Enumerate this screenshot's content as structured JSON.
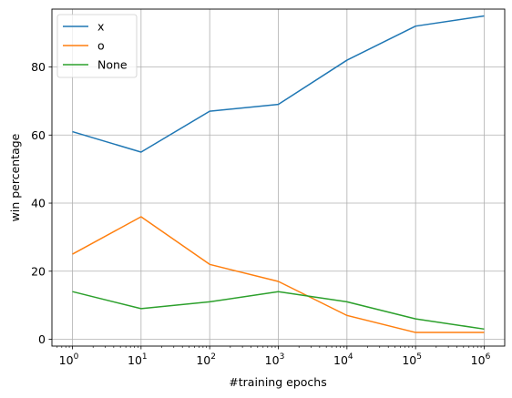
{
  "chart_data": {
    "type": "line",
    "title": "",
    "xlabel": "#training epochs",
    "ylabel": "win percentage",
    "xscale": "log",
    "x": [
      1,
      10,
      100,
      1000,
      10000,
      100000,
      1000000
    ],
    "x_tick_labels": [
      {
        "base": "10",
        "exp": "0"
      },
      {
        "base": "10",
        "exp": "1"
      },
      {
        "base": "10",
        "exp": "2"
      },
      {
        "base": "10",
        "exp": "3"
      },
      {
        "base": "10",
        "exp": "4"
      },
      {
        "base": "10",
        "exp": "5"
      },
      {
        "base": "10",
        "exp": "6"
      }
    ],
    "y_ticks": [
      0,
      20,
      40,
      60,
      80
    ],
    "ylim": [
      -2,
      97
    ],
    "grid": true,
    "legend_position": "upper-left",
    "series": [
      {
        "name": "x",
        "color": "#1f77b4",
        "values": [
          61,
          55,
          67,
          69,
          82,
          92,
          95
        ]
      },
      {
        "name": "o",
        "color": "#ff7f0e",
        "values": [
          25,
          36,
          22,
          17,
          7,
          2,
          2
        ]
      },
      {
        "name": "None",
        "color": "#2ca02c",
        "values": [
          14,
          9,
          11,
          14,
          11,
          6,
          3
        ]
      }
    ]
  }
}
